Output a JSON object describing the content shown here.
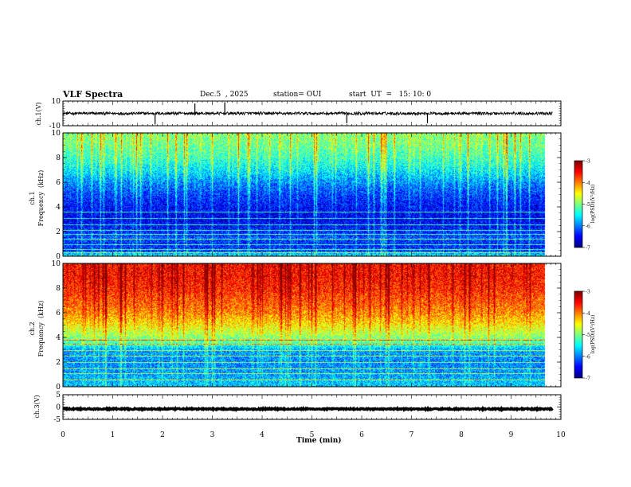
{
  "header": {
    "title": "VLF Spectra",
    "date": "Dec.5  , 2025",
    "station": "station= OUI",
    "start": "start  UT  =   15: 10: 0"
  },
  "colors": {
    "spectrogram_scale": [
      "#00007f",
      "#0000ff",
      "#007fff",
      "#00ffff",
      "#7fff7f",
      "#ffff00",
      "#ff7f00",
      "#ff0000",
      "#7f0000"
    ],
    "waveform_line": "#000000"
  },
  "chart_data": [
    {
      "id": "ch1-waveform",
      "type": "line",
      "ylabel": "ch.1(V)",
      "ylim": [
        -10,
        10
      ],
      "yticks": [
        "10",
        "-10"
      ],
      "xlim": [
        0,
        10
      ],
      "baseline_v": 0,
      "noise_amplitude_v": 1.2,
      "spikes": [
        {
          "t": 1.85,
          "v": -9
        },
        {
          "t": 2.65,
          "v": 8
        },
        {
          "t": 3.25,
          "v": 9
        },
        {
          "t": 5.7,
          "v": -8
        },
        {
          "t": 7.32,
          "v": -8
        }
      ]
    },
    {
      "id": "ch1-spectrogram",
      "type": "heatmap",
      "ylabel": "ch.1\nFrequency  (kHz)",
      "xlim": [
        0,
        9.83
      ],
      "ylim": [
        0,
        10
      ],
      "yticks": [
        "0",
        "2",
        "4",
        "6",
        "8",
        "10"
      ],
      "colorbar": {
        "label": "log(PSD)(V²/Hz)",
        "range": [
          -7,
          -3
        ],
        "ticks": [
          "-3",
          "-4",
          "-5",
          "-6",
          "-7"
        ]
      },
      "level_by_freq": [
        {
          "f": 0,
          "log_psd": -5.4
        },
        {
          "f": 0.5,
          "log_psd": -6.3
        },
        {
          "f": 1,
          "log_psd": -6.4
        },
        {
          "f": 1.5,
          "log_psd": -6.2
        },
        {
          "f": 2,
          "log_psd": -6.4
        },
        {
          "f": 3,
          "log_psd": -6.6
        },
        {
          "f": 4,
          "log_psd": -6.5
        },
        {
          "f": 5,
          "log_psd": -6.3
        },
        {
          "f": 6,
          "log_psd": -6.0
        },
        {
          "f": 7,
          "log_psd": -5.6
        },
        {
          "f": 8,
          "log_psd": -5.3
        },
        {
          "f": 9,
          "log_psd": -5.1
        },
        {
          "f": 10,
          "log_psd": -5.0
        }
      ],
      "burst_strength": 0.55,
      "horizontal_lines_khz": [
        0.3,
        0.6,
        1.0,
        1.4,
        1.8,
        2.1,
        2.6,
        3.1,
        3.6
      ]
    },
    {
      "id": "ch2-spectrogram",
      "type": "heatmap",
      "ylabel": "ch.2\nFrequency  (kHz)",
      "xlim": [
        0,
        9.83
      ],
      "ylim": [
        0,
        10
      ],
      "yticks": [
        "0",
        "2",
        "4",
        "6",
        "8",
        "10"
      ],
      "colorbar": {
        "label": "log(PSD)(V²/Hz)",
        "range": [
          -7,
          -3
        ],
        "ticks": [
          "-3",
          "-4",
          "-5",
          "-6",
          "-7"
        ]
      },
      "level_by_freq": [
        {
          "f": 0,
          "log_psd": -5.7
        },
        {
          "f": 1,
          "log_psd": -5.9
        },
        {
          "f": 2,
          "log_psd": -6.0
        },
        {
          "f": 3,
          "log_psd": -5.9
        },
        {
          "f": 3.6,
          "log_psd": -5.2
        },
        {
          "f": 4.2,
          "log_psd": -4.9
        },
        {
          "f": 5,
          "log_psd": -4.5
        },
        {
          "f": 6,
          "log_psd": -4.1
        },
        {
          "f": 7,
          "log_psd": -3.9
        },
        {
          "f": 8,
          "log_psd": -3.7
        },
        {
          "f": 9,
          "log_psd": -3.6
        },
        {
          "f": 10,
          "log_psd": -3.6
        }
      ],
      "burst_strength": 0.45,
      "horizontal_lines_khz": [
        0.6,
        1.1,
        1.5,
        2.0,
        2.5,
        3.0,
        3.5,
        3.8
      ]
    },
    {
      "id": "ch3-waveform",
      "type": "line",
      "ylabel": "ch.3(V)",
      "ylim": [
        -5,
        5
      ],
      "yticks": [
        "5",
        "0",
        "-5"
      ],
      "xlim": [
        0,
        10
      ],
      "baseline_v": -0.8,
      "noise_amplitude_v": 0.25,
      "xlabel": "Time  (min)",
      "xticks": [
        "0",
        "1",
        "2",
        "3",
        "4",
        "5",
        "6",
        "7",
        "8",
        "9",
        "10"
      ]
    }
  ]
}
